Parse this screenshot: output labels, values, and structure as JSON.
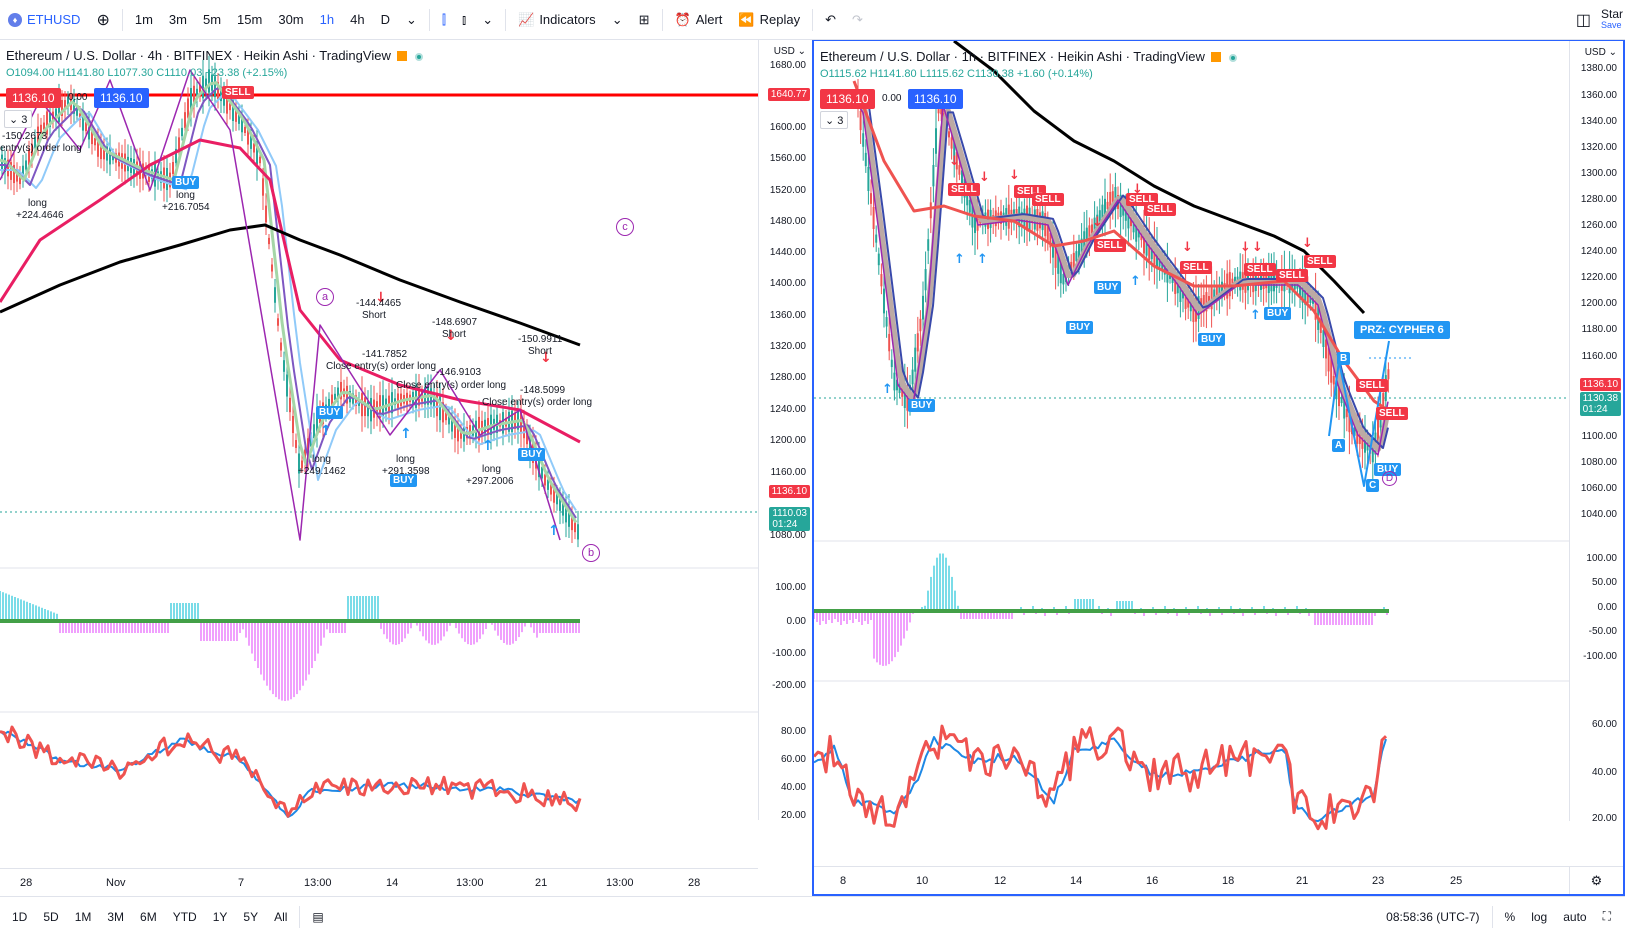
{
  "topbar": {
    "symbol": "ETHUSD",
    "intervals": [
      "1m",
      "3m",
      "5m",
      "15m",
      "30m",
      "1h",
      "4h",
      "D"
    ],
    "selected_interval": "1h",
    "indicators": "Indicators",
    "alert": "Alert",
    "replay": "Replay",
    "start_label": "Star",
    "save_label": "Save"
  },
  "left": {
    "title": "Ethereum / U.S. Dollar · 4h · BITFINEX · Heikin Ashi · TradingView",
    "ohlc": "O1094.00 H1141.80 L1077.30 C1110.03 +23.38 (+2.15%)",
    "chip_sell": "1136.10",
    "chip_mid": "0.00",
    "chip_buy": "1136.10",
    "count": "3",
    "axis_currency": "USD",
    "price_labels": [
      "1680.00",
      "1600.00",
      "1560.00",
      "1520.00",
      "1480.00",
      "1440.00",
      "1400.00",
      "1360.00",
      "1320.00",
      "1280.00",
      "1240.00",
      "1200.00",
      "1160.00",
      "1080.00"
    ],
    "tag_red_line": "1640.77",
    "tag_last": "1136.10",
    "tag_close": "1110.03",
    "tag_time": "01:24",
    "osc_labels": [
      "100.00",
      "0.00",
      "-100.00",
      "-200.00"
    ],
    "rsi_labels": [
      "80.00",
      "60.00",
      "40.00",
      "20.00"
    ],
    "x_labels": [
      "28",
      "Nov",
      "7",
      "13:00",
      "14",
      "13:00",
      "21",
      "13:00",
      "28"
    ],
    "annotations": [
      {
        "t": "-144.4465"
      },
      {
        "t": "Short"
      },
      {
        "t": "-148.6907"
      },
      {
        "t": "Short"
      },
      {
        "t": "-150.9911"
      },
      {
        "t": "Short"
      },
      {
        "t": "-141.7852"
      },
      {
        "t": "Close entry(s) order long"
      },
      {
        "t": "-146.9103"
      },
      {
        "t": "Close entry(s) order long"
      },
      {
        "t": "-148.5099"
      },
      {
        "t": "Close entry(s) order long"
      },
      {
        "t": "long"
      },
      {
        "t": "+249.1462"
      },
      {
        "t": "long"
      },
      {
        "t": "+291.3598"
      },
      {
        "t": "long"
      },
      {
        "t": "+297.2006"
      },
      {
        "t": "long"
      },
      {
        "t": "+216.7054"
      },
      {
        "t": "long"
      },
      {
        "t": "+224.4646"
      },
      {
        "t": "-150.2673"
      },
      {
        "t": "entry(s) order long"
      }
    ],
    "waves": [
      "a",
      "b",
      "c"
    ],
    "buy": "BUY",
    "sell": "SELL"
  },
  "right": {
    "title": "Ethereum / U.S. Dollar · 1h · BITFINEX · Heikin Ashi · TradingView",
    "ohlc": "O1115.62 H1141.80 L1115.62 C1130.38 +1.60 (+0.14%)",
    "chip_sell": "1136.10",
    "chip_mid": "0.00",
    "chip_buy": "1136.10",
    "count": "3",
    "axis_currency": "USD",
    "price_labels": [
      "1380.00",
      "1360.00",
      "1340.00",
      "1320.00",
      "1300.00",
      "1280.00",
      "1260.00",
      "1240.00",
      "1220.00",
      "1200.00",
      "1180.00",
      "1160.00",
      "1100.00",
      "1080.00",
      "1060.00",
      "1040.00"
    ],
    "tag_last": "1136.10",
    "tag_close": "1130.38",
    "tag_time": "01:24",
    "osc_labels": [
      "100.00",
      "50.00",
      "0.00",
      "-50.00",
      "-100.00"
    ],
    "rsi_labels": [
      "60.00",
      "40.00",
      "20.00"
    ],
    "x_labels": [
      "8",
      "10",
      "12",
      "14",
      "16",
      "18",
      "21",
      "23",
      "25"
    ],
    "prz": "PRZ: CYPHER 6",
    "points": [
      "A",
      "B",
      "C",
      "D"
    ],
    "buy": "BUY",
    "sell": "SELL"
  },
  "bottombar": {
    "ranges": [
      "1D",
      "5D",
      "1M",
      "3M",
      "6M",
      "YTD",
      "1Y",
      "5Y",
      "All"
    ],
    "clock": "08:58:36 (UTC-7)",
    "pct": "%",
    "log": "log",
    "auto": "auto"
  },
  "colors": {
    "accent": "#2962ff",
    "sell": "#f23645",
    "buy": "#2196f3",
    "ma_black": "#000000",
    "ma_red": "#e91e63"
  }
}
